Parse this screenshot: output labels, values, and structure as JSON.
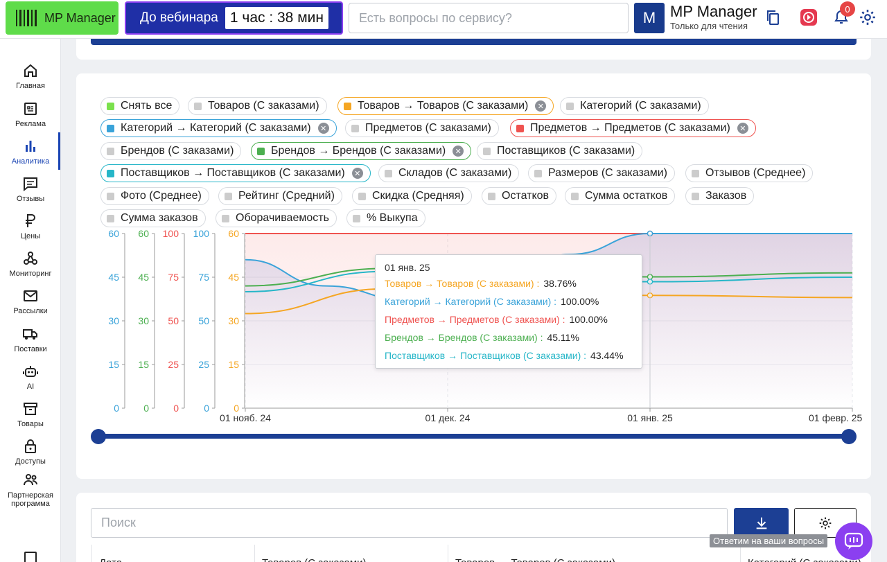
{
  "header": {
    "logo_text": "MP Manager",
    "webinar_label": "До вебинара",
    "timer": "1 час : 38 мин",
    "search_placeholder": "Есть вопросы по сервису?",
    "avatar_letter": "M",
    "user_name": "MP Manager",
    "user_role": "Только для чтения",
    "notifications_count": "0",
    "colors": {
      "logo_bg": "#5fdc4a",
      "webinar_bg": "#1f2fa6",
      "accent": "#1c3f94"
    }
  },
  "sidebar": {
    "items": [
      {
        "label": "Главная",
        "icon": "home-icon"
      },
      {
        "label": "Реклама",
        "icon": "ads-icon"
      },
      {
        "label": "Аналитика",
        "icon": "chart-icon",
        "active": true
      },
      {
        "label": "Отзывы",
        "icon": "reviews-icon"
      },
      {
        "label": "Цены",
        "icon": "ruble-icon"
      },
      {
        "label": "Мониторинг",
        "icon": "monitoring-icon"
      },
      {
        "label": "Рассылки",
        "icon": "mail-icon"
      },
      {
        "label": "Поставки",
        "icon": "truck-icon"
      },
      {
        "label": "AI",
        "icon": "robot-icon"
      },
      {
        "label": "Товары",
        "icon": "box-icon"
      },
      {
        "label": "Доступы",
        "icon": "lock-icon"
      },
      {
        "label": "Партнерская программа",
        "icon": "partners-icon"
      }
    ]
  },
  "chips": [
    {
      "label": "Снять все",
      "color": "#7be14d",
      "closable": false
    },
    {
      "label": "Товаров (С заказами)",
      "color": "#cccccc",
      "closable": false
    },
    {
      "label": "Товаров → Товаров (С заказами)",
      "color": "#f5a623",
      "closable": true,
      "border": "#f5a623"
    },
    {
      "label": "Категорий (С заказами)",
      "color": "#cccccc",
      "closable": false
    },
    {
      "label": "Категорий → Категорий (С заказами)",
      "color": "#3aa3d9",
      "closable": true,
      "border": "#3aa3d9"
    },
    {
      "label": "Предметов (С заказами)",
      "color": "#cccccc",
      "closable": false
    },
    {
      "label": "Предметов → Предметов (С заказами)",
      "color": "#ef5350",
      "closable": true,
      "border": "#ef5350"
    },
    {
      "label": "Брендов (С заказами)",
      "color": "#cccccc",
      "closable": false
    },
    {
      "label": "Брендов → Брендов (С заказами)",
      "color": "#4caf50",
      "closable": true,
      "border": "#4caf50"
    },
    {
      "label": "Поставщиков (С заказами)",
      "color": "#cccccc",
      "closable": false
    },
    {
      "label": "Поставщиков → Поставщиков (С заказами)",
      "color": "#26b6c8",
      "closable": true,
      "border": "#26b6c8"
    },
    {
      "label": "Складов (С заказами)",
      "color": "#cccccc",
      "closable": false
    },
    {
      "label": "Размеров (С заказами)",
      "color": "#cccccc",
      "closable": false
    },
    {
      "label": "Отзывов (Среднее)",
      "color": "#cccccc",
      "closable": false
    },
    {
      "label": "Фото (Среднее)",
      "color": "#cccccc",
      "closable": false
    },
    {
      "label": "Рейтинг (Средний)",
      "color": "#cccccc",
      "closable": false
    },
    {
      "label": "Скидка (Средняя)",
      "color": "#cccccc",
      "closable": false
    },
    {
      "label": "Остатков",
      "color": "#cccccc",
      "closable": false
    },
    {
      "label": "Сумма остатков",
      "color": "#cccccc",
      "closable": false
    },
    {
      "label": "Заказов",
      "color": "#cccccc",
      "closable": false
    },
    {
      "label": "Сумма заказов",
      "color": "#cccccc",
      "closable": false
    },
    {
      "label": "Оборачиваемость",
      "color": "#cccccc",
      "closable": false
    },
    {
      "label": "% Выкупа",
      "color": "#cccccc",
      "closable": false
    }
  ],
  "chart_data": {
    "type": "line",
    "x_ticks": [
      "01 нояб. 24",
      "01 дек. 24",
      "01 янв. 25",
      "01 февр. 25"
    ],
    "axes": [
      {
        "color": "#3aa3d9",
        "ticks": [
          "60",
          "45",
          "30",
          "15",
          "0"
        ],
        "range": [
          0,
          60
        ]
      },
      {
        "color": "#4caf50",
        "ticks": [
          "60",
          "45",
          "30",
          "15",
          "0"
        ],
        "range": [
          0,
          60
        ]
      },
      {
        "color": "#ef5350",
        "ticks": [
          "100",
          "75",
          "50",
          "25",
          "0"
        ],
        "range": [
          0,
          100
        ]
      },
      {
        "color": "#3aa3d9",
        "ticks": [
          "100",
          "75",
          "50",
          "25",
          "0"
        ],
        "range": [
          0,
          100
        ]
      },
      {
        "color": "#f5a623",
        "ticks": [
          "60",
          "45",
          "30",
          "15",
          "0"
        ],
        "range": [
          0,
          60
        ]
      }
    ],
    "series": [
      {
        "name": "Предметов → Предметов (С заказами)",
        "color": "#ef5350",
        "axis": 2,
        "values": [
          [
            0,
            100
          ],
          [
            1,
            100
          ],
          [
            2,
            100
          ],
          [
            3,
            100
          ]
        ]
      },
      {
        "name": "Категорий → Категорий (С заказами)",
        "color": "#3aa3d9",
        "axis": 3,
        "values": [
          [
            0,
            85
          ],
          [
            0.4,
            70
          ],
          [
            0.8,
            62
          ],
          [
            1.2,
            68
          ],
          [
            1.6,
            88
          ],
          [
            2,
            100
          ],
          [
            3,
            100
          ]
        ]
      },
      {
        "name": "Брендов → Брендов (С заказами)",
        "color": "#4caf50",
        "axis": 1,
        "values": [
          [
            0,
            42
          ],
          [
            0.7,
            48
          ],
          [
            2,
            45.11
          ],
          [
            3,
            46.5
          ]
        ]
      },
      {
        "name": "Поставщиков → Поставщиков (С заказами)",
        "color": "#26b6c8",
        "axis": 4,
        "values": [
          [
            0,
            40
          ],
          [
            0.7,
            47
          ],
          [
            2,
            43.44
          ],
          [
            3,
            45
          ]
        ]
      },
      {
        "name": "Товаров → Товаров (С заказами)",
        "color": "#f5a623",
        "axis": 4,
        "values": [
          [
            0,
            32.5
          ],
          [
            0.7,
            41
          ],
          [
            2,
            38.76
          ],
          [
            3,
            38
          ]
        ]
      }
    ],
    "tooltip": {
      "title": "01 янв. 25",
      "rows": [
        {
          "name": "Товаров → Товаров (С заказами) :",
          "value": "38.76%",
          "color": "#f5a623"
        },
        {
          "name": "Категорий → Категорий (С заказами) :",
          "value": "100.00%",
          "color": "#3aa3d9"
        },
        {
          "name": "Предметов → Предметов (С заказами) :",
          "value": "100.00%",
          "color": "#ef5350"
        },
        {
          "name": "Брендов → Брендов (С заказами) :",
          "value": "45.11%",
          "color": "#4caf50"
        },
        {
          "name": "Поставщиков → Поставщиков (С заказами) :",
          "value": "43.44%",
          "color": "#26b6c8"
        }
      ]
    }
  },
  "table": {
    "search_placeholder": "Поиск",
    "help_tooltip": "Ответим на ваши вопросы",
    "headers": [
      "Дата",
      "Товаров (С заказами)",
      "Товаров → Товаров (С заказами)",
      "Категорий (С заказами)"
    ]
  }
}
